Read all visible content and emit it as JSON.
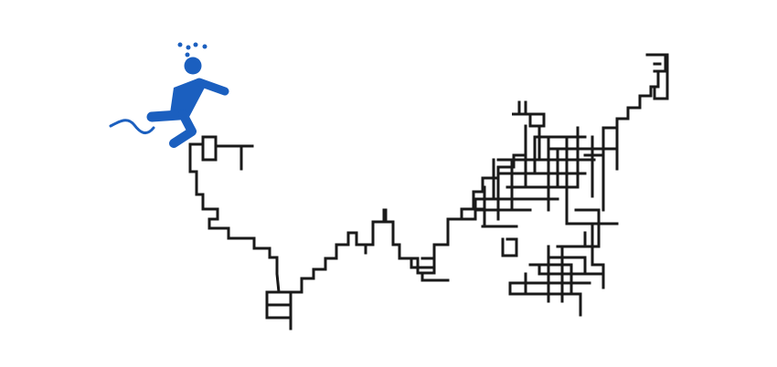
{
  "diagram": {
    "description_label": "",
    "figure_icon": "drunk-walker-person-icon",
    "colors": {
      "background": "#ffffff",
      "path_stroke": "#1a1a1a",
      "figure": "#1b5fbf"
    }
  }
}
